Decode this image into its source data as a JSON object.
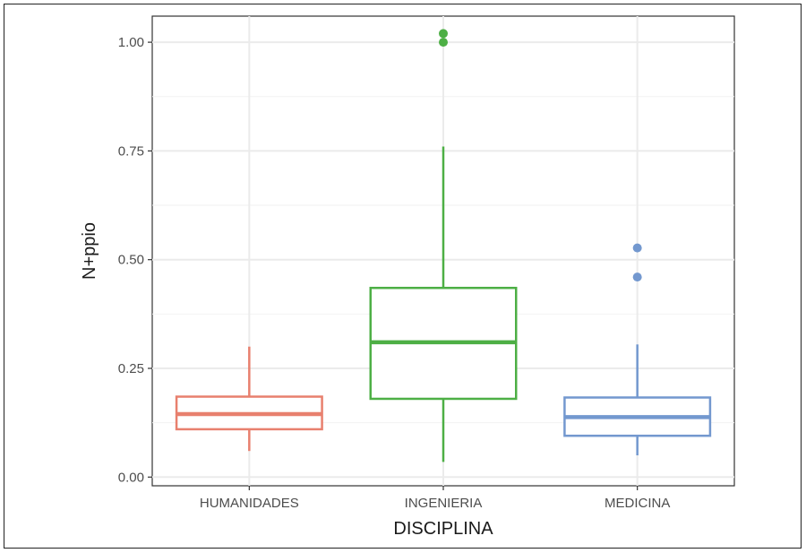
{
  "chart_data": {
    "type": "box",
    "xlabel": "DISCIPLINA",
    "ylabel": "N+ppio",
    "ylim": [
      -0.02,
      1.06
    ],
    "y_ticks": [
      {
        "value": 0.0,
        "label": "0.00"
      },
      {
        "value": 0.25,
        "label": "0.25"
      },
      {
        "value": 0.5,
        "label": "0.50"
      },
      {
        "value": 0.75,
        "label": "0.75"
      },
      {
        "value": 1.0,
        "label": "1.00"
      }
    ],
    "grid": true,
    "categories": [
      "HUMANIDADES",
      "INGENIERIA",
      "MEDICINA"
    ],
    "boxes": [
      {
        "category": "HUMANIDADES",
        "color": "#E8806E",
        "min": 0.06,
        "q1": 0.11,
        "median": 0.145,
        "q3": 0.185,
        "max": 0.3,
        "outliers": []
      },
      {
        "category": "INGENIERIA",
        "color": "#4DAF45",
        "min": 0.035,
        "q1": 0.18,
        "median": 0.31,
        "q3": 0.435,
        "max": 0.76,
        "outliers": [
          1.0,
          1.02
        ]
      },
      {
        "category": "MEDICINA",
        "color": "#7398CF",
        "min": 0.05,
        "q1": 0.095,
        "median": 0.138,
        "q3": 0.183,
        "max": 0.305,
        "outliers": [
          0.46,
          0.527
        ]
      }
    ]
  }
}
